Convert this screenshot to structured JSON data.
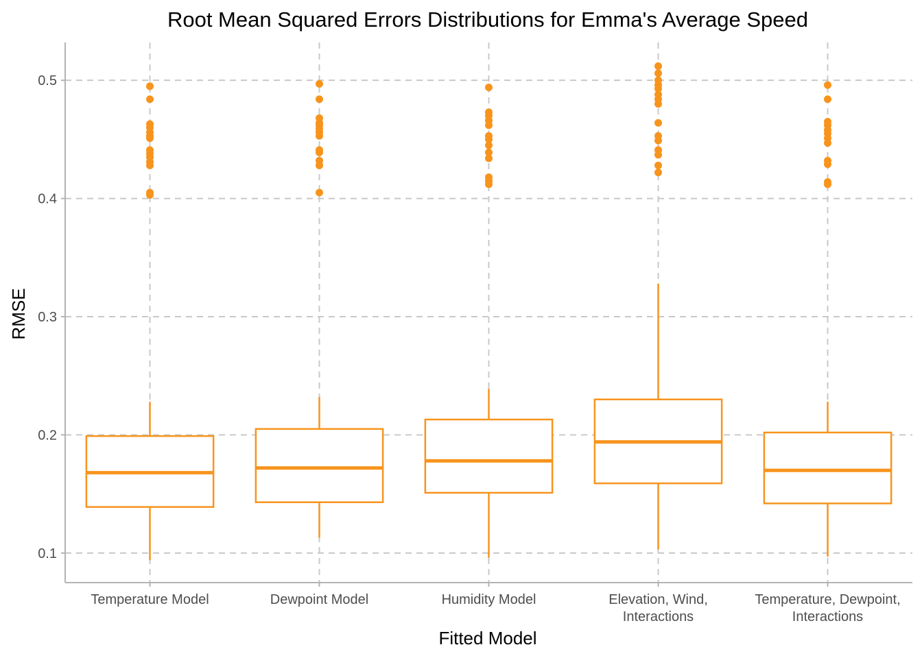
{
  "chart_data": {
    "type": "boxplot",
    "title": "Root Mean Squared Errors Distributions for Emma's Average Speed",
    "xlabel": "Fitted Model",
    "ylabel": "RMSE",
    "ylim": [
      0.075,
      0.532
    ],
    "yticks": [
      0.1,
      0.2,
      0.3,
      0.4,
      0.5
    ],
    "ytick_labels": [
      "0.1",
      "0.2",
      "0.3",
      "0.4",
      "0.5"
    ],
    "grid": true,
    "color": "#F7941D",
    "categories": [
      [
        "Temperature Model"
      ],
      [
        "Dewpoint Model"
      ],
      [
        "Humidity Model"
      ],
      [
        "Elevation, Wind,",
        "Interactions"
      ],
      [
        "Temperature, Dewpoint,",
        "Interactions"
      ]
    ],
    "boxes": [
      {
        "whisker_low": 0.094,
        "q1": 0.139,
        "median": 0.168,
        "q3": 0.199,
        "whisker_high": 0.228,
        "outliers": [
          0.403,
          0.405,
          0.428,
          0.431,
          0.435,
          0.438,
          0.441,
          0.451,
          0.453,
          0.456,
          0.46,
          0.463,
          0.484,
          0.495
        ]
      },
      {
        "whisker_low": 0.113,
        "q1": 0.143,
        "median": 0.172,
        "q3": 0.205,
        "whisker_high": 0.232,
        "outliers": [
          0.405,
          0.428,
          0.432,
          0.439,
          0.441,
          0.453,
          0.456,
          0.459,
          0.462,
          0.464,
          0.468,
          0.484,
          0.497
        ]
      },
      {
        "whisker_low": 0.096,
        "q1": 0.151,
        "median": 0.178,
        "q3": 0.213,
        "whisker_high": 0.239,
        "outliers": [
          0.412,
          0.415,
          0.418,
          0.434,
          0.439,
          0.445,
          0.45,
          0.453,
          0.462,
          0.466,
          0.47,
          0.473,
          0.494
        ]
      },
      {
        "whisker_low": 0.103,
        "q1": 0.159,
        "median": 0.194,
        "q3": 0.23,
        "whisker_high": 0.328,
        "outliers": [
          0.422,
          0.428,
          0.437,
          0.441,
          0.449,
          0.453,
          0.464,
          0.48,
          0.484,
          0.488,
          0.493,
          0.496,
          0.5,
          0.506,
          0.512
        ]
      },
      {
        "whisker_low": 0.097,
        "q1": 0.142,
        "median": 0.17,
        "q3": 0.202,
        "whisker_high": 0.228,
        "outliers": [
          0.412,
          0.414,
          0.429,
          0.432,
          0.447,
          0.451,
          0.455,
          0.458,
          0.462,
          0.465,
          0.484,
          0.496
        ]
      }
    ]
  }
}
